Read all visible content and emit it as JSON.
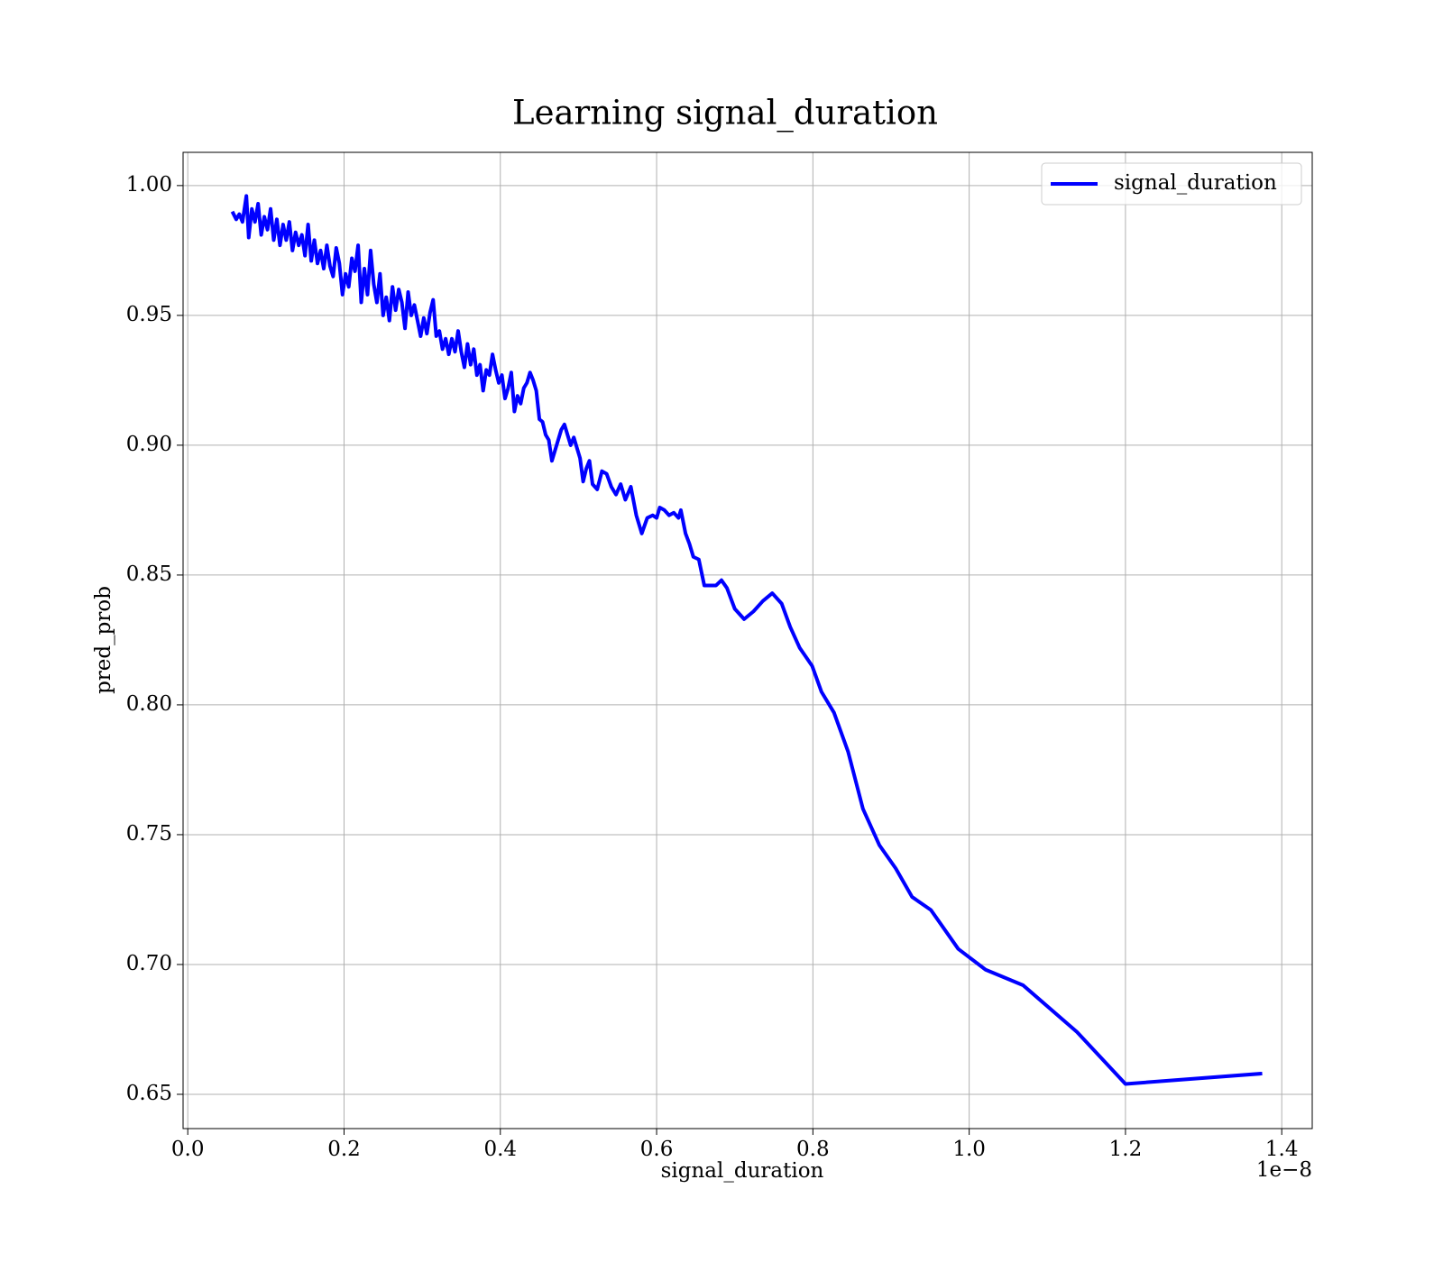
{
  "chart_data": {
    "type": "line",
    "title": "Learning signal_duration",
    "xlabel": "signal_duration",
    "ylabel": "pred_prob",
    "x_offset_label": "1e−8",
    "x": [
      0.057,
      0.062,
      0.066,
      0.07,
      0.073,
      0.075,
      0.078,
      0.082,
      0.086,
      0.09,
      0.094,
      0.098,
      0.102,
      0.106,
      0.11,
      0.114,
      0.118,
      0.122,
      0.126,
      0.13,
      0.134,
      0.138,
      0.142,
      0.146,
      0.15,
      0.154,
      0.158,
      0.162,
      0.166,
      0.17,
      0.174,
      0.178,
      0.182,
      0.186,
      0.19,
      0.194,
      0.198,
      0.202,
      0.206,
      0.21,
      0.214,
      0.218,
      0.222,
      0.226,
      0.23,
      0.234,
      0.238,
      0.242,
      0.246,
      0.25,
      0.254,
      0.258,
      0.262,
      0.266,
      0.27,
      0.274,
      0.278,
      0.282,
      0.286,
      0.29,
      0.294,
      0.298,
      0.302,
      0.306,
      0.31,
      0.314,
      0.318,
      0.322,
      0.326,
      0.33,
      0.334,
      0.338,
      0.342,
      0.346,
      0.35,
      0.354,
      0.358,
      0.362,
      0.366,
      0.37,
      0.374,
      0.378,
      0.382,
      0.386,
      0.39,
      0.394,
      0.398,
      0.402,
      0.406,
      0.41,
      0.414,
      0.418,
      0.422,
      0.426,
      0.43,
      0.434,
      0.438,
      0.442,
      0.446,
      0.45,
      0.454,
      0.458,
      0.462,
      0.466,
      0.47,
      0.474,
      0.478,
      0.482,
      0.486,
      0.49,
      0.494,
      0.498,
      0.502,
      0.506,
      0.51,
      0.514,
      0.518,
      0.524,
      0.53,
      0.536,
      0.542,
      0.548,
      0.554,
      0.56,
      0.567,
      0.574,
      0.581,
      0.588,
      0.595,
      0.6,
      0.604,
      0.61,
      0.616,
      0.622,
      0.628,
      0.631,
      0.637,
      0.642,
      0.647,
      0.654,
      0.661,
      0.676,
      0.683,
      0.69,
      0.7,
      0.712,
      0.724,
      0.736,
      0.748,
      0.76,
      0.771,
      0.783,
      0.799,
      0.811,
      0.827,
      0.845,
      0.864,
      0.885,
      0.906,
      0.927,
      0.951,
      0.986,
      1.021,
      1.069,
      1.138,
      1.2,
      1.375
    ],
    "series": [
      {
        "name": "signal_duration",
        "color": "#0000ff",
        "values": [
          0.99,
          0.987,
          0.989,
          0.986,
          0.992,
          0.996,
          0.98,
          0.991,
          0.986,
          0.993,
          0.981,
          0.988,
          0.983,
          0.991,
          0.979,
          0.987,
          0.977,
          0.985,
          0.979,
          0.986,
          0.975,
          0.982,
          0.977,
          0.981,
          0.973,
          0.985,
          0.971,
          0.979,
          0.97,
          0.975,
          0.968,
          0.977,
          0.969,
          0.965,
          0.976,
          0.97,
          0.958,
          0.966,
          0.961,
          0.972,
          0.967,
          0.977,
          0.955,
          0.968,
          0.958,
          0.975,
          0.962,
          0.955,
          0.966,
          0.95,
          0.957,
          0.948,
          0.961,
          0.952,
          0.96,
          0.955,
          0.945,
          0.959,
          0.95,
          0.954,
          0.948,
          0.942,
          0.949,
          0.943,
          0.951,
          0.956,
          0.942,
          0.944,
          0.937,
          0.941,
          0.935,
          0.941,
          0.936,
          0.944,
          0.936,
          0.93,
          0.939,
          0.931,
          0.937,
          0.927,
          0.931,
          0.921,
          0.929,
          0.927,
          0.935,
          0.929,
          0.924,
          0.927,
          0.918,
          0.922,
          0.928,
          0.913,
          0.919,
          0.916,
          0.922,
          0.924,
          0.928,
          0.925,
          0.921,
          0.91,
          0.909,
          0.904,
          0.902,
          0.894,
          0.898,
          0.902,
          0.906,
          0.908,
          0.904,
          0.9,
          0.903,
          0.899,
          0.895,
          0.886,
          0.891,
          0.894,
          0.885,
          0.883,
          0.89,
          0.889,
          0.884,
          0.881,
          0.885,
          0.879,
          0.884,
          0.873,
          0.866,
          0.872,
          0.873,
          0.872,
          0.876,
          0.875,
          0.873,
          0.874,
          0.872,
          0.875,
          0.866,
          0.862,
          0.857,
          0.856,
          0.846,
          0.846,
          0.848,
          0.845,
          0.837,
          0.833,
          0.836,
          0.84,
          0.843,
          0.839,
          0.83,
          0.822,
          0.815,
          0.805,
          0.797,
          0.782,
          0.76,
          0.746,
          0.737,
          0.726,
          0.721,
          0.706,
          0.698,
          0.692,
          0.674,
          0.654,
          0.658
        ]
      }
    ],
    "xlim": [
      -0.006,
      1.439
    ],
    "ylim": [
      0.6368,
      1.0128
    ],
    "xticks": [
      {
        "value": 0,
        "label": "0.0"
      },
      0.2,
      0.4,
      0.6,
      0.8,
      {
        "value": 1,
        "label": "1.0"
      },
      1.2,
      1.4
    ],
    "yticks": [
      0.65,
      {
        "value": 0.7,
        "label": "0.70"
      },
      0.75,
      {
        "value": 0.8,
        "label": "0.80"
      },
      0.85,
      {
        "value": 0.9,
        "label": "0.90"
      },
      0.95,
      {
        "value": 1,
        "label": "1.00"
      }
    ],
    "grid": true,
    "legend": "upper right"
  }
}
